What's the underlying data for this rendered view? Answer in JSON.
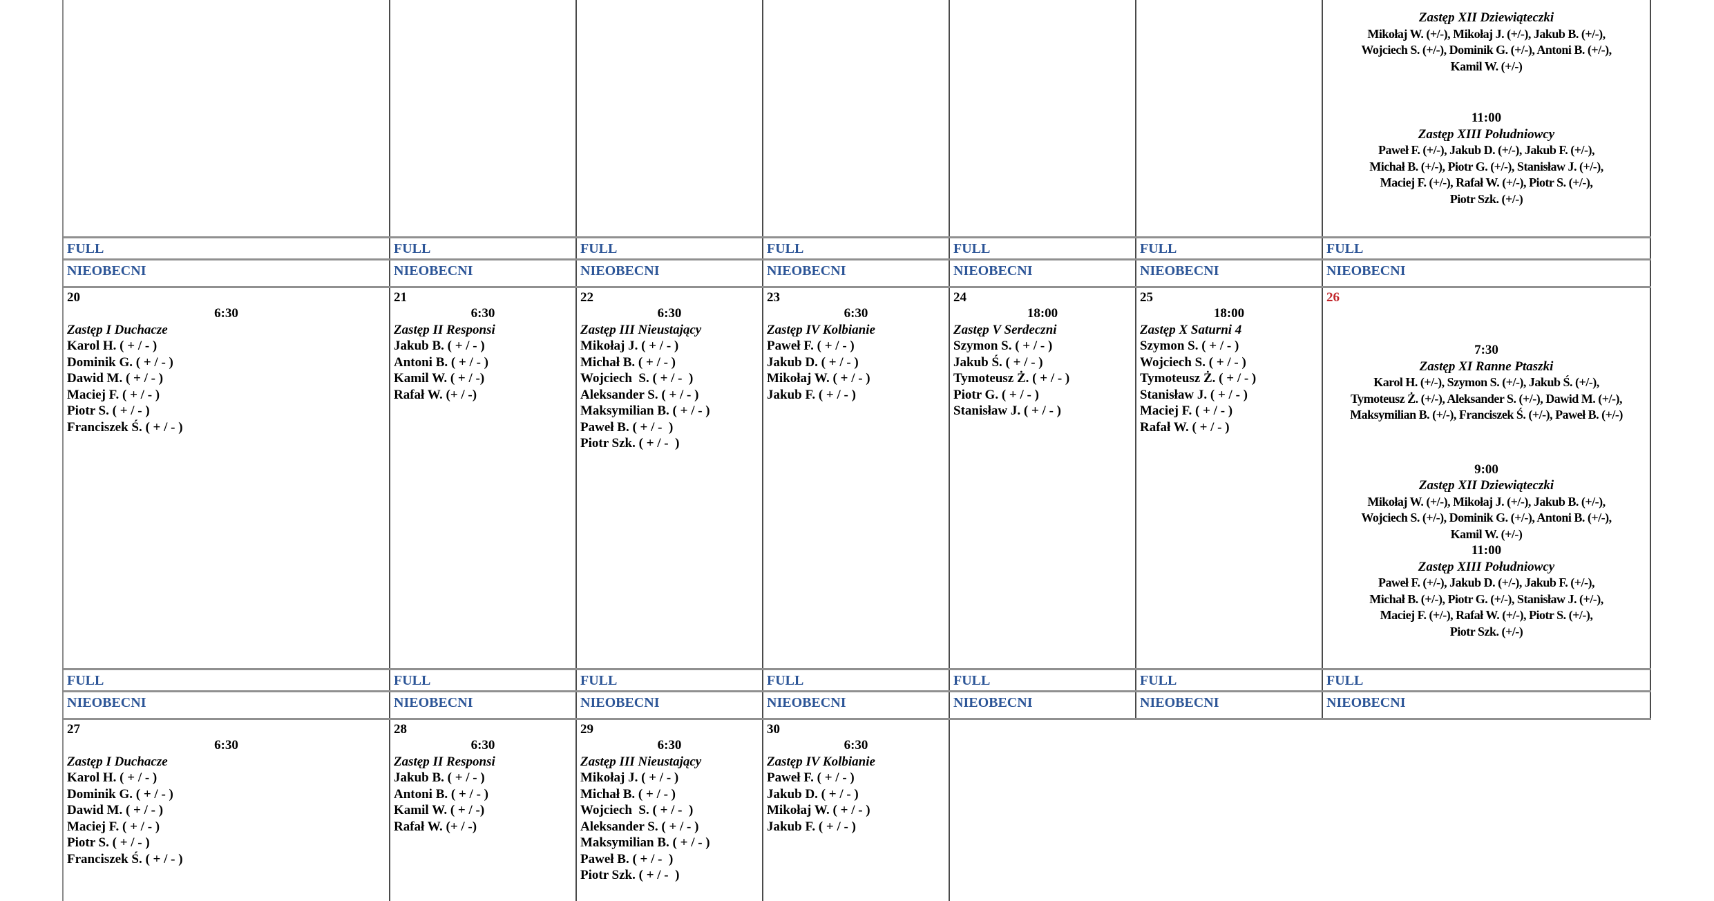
{
  "ui": {
    "labels": {
      "full": "FULL",
      "absent": "NIEOBECNI"
    },
    "colors": {
      "event_blue": "#2C5597",
      "holiday_red": "#C2262B",
      "grid_horizontal": "#909090",
      "grid_vertical": "#4A4A4A"
    }
  },
  "overflow_cell": {
    "blocks": [
      {
        "time": "",
        "title": "Zastęp XII Dziewiąteczki",
        "lines": [
          "Mikołaj W. (+/-), Mikołaj J. (+/-), Jakub B. (+/-),",
          "Wojciech S. (+/-), Dominik G. (+/-), Antoni B. (+/-),",
          "Kamil W. (+/-)"
        ]
      },
      {
        "time": "11:00",
        "title": "Zastęp XIII Południowcy",
        "lines": [
          "Paweł F. (+/-), Jakub D. (+/-), Jakub F. (+/-),",
          "Michał B. (+/-), Piotr G. (+/-), Stanisław J. (+/-),",
          "Maciej F. (+/-), Rafał W. (+/-), Piotr S. (+/-),",
          "Piotr Szk. (+/-)"
        ]
      }
    ]
  },
  "weeks": [
    {
      "days": [
        {
          "date": "20",
          "time": "6:30",
          "group": "Zastęp I Duchacze",
          "members": [
            "Karol H. ( + / - )",
            "Dominik G. ( + / - )",
            "Dawid M. ( + / - )",
            "Maciej F. ( + / - )",
            "Piotr S. ( + / - )",
            "Franciszek Ś. ( + / - )"
          ]
        },
        {
          "date": "21",
          "time": "6:30",
          "group": "Zastęp II Responsi",
          "members": [
            "Jakub B. ( + / - )",
            "Antoni B. ( + / - )",
            "Kamil W. ( + / -)",
            "Rafał W. (+ / -)"
          ]
        },
        {
          "date": "22",
          "time": "6:30",
          "group": "Zastęp III Nieustający",
          "members": [
            "Mikołaj J. ( + / - )",
            "Michał B. ( + / - )",
            "Wojciech  S. ( + / -  )",
            "Aleksander S. ( + / - )",
            "Maksymilian B. ( + / - )",
            "Paweł B. ( + / -  )",
            "Piotr Szk. ( + / -  )"
          ]
        },
        {
          "date": "23",
          "time": "6:30",
          "group": "Zastęp IV Kolbianie",
          "members": [
            "Paweł F. ( + / - )",
            "Jakub D. ( + / - )",
            "Mikołaj W. ( + / - )",
            "Jakub F. ( + / - )"
          ]
        },
        {
          "date": "24",
          "time": "18:00",
          "group": "Zastęp V Serdeczni",
          "members": [
            "Szymon S. ( + / - )",
            "Jakub Ś. ( + / - )",
            "Tymoteusz Ż. ( + / - )",
            "Piotr G. ( + / - )",
            "Stanisław J. ( + / - )"
          ]
        },
        {
          "date": "25",
          "time": "18:00",
          "group": "Zastęp X Saturni 4",
          "members": [
            "Szymon S. ( + / - )",
            "Wojciech S. ( + / - )",
            "Tymoteusz Ż. ( + / - )",
            "Stanisław J. ( + / - )",
            "Maciej F. ( + / - )",
            "Rafał W. ( + / - )"
          ]
        },
        {
          "date": "26",
          "holiday": true,
          "blocks": [
            {
              "time": "7:30",
              "title": "Zastęp XI Ranne Ptaszki",
              "lines": [
                "Karol H. (+/-), Szymon S. (+/-), Jakub Ś. (+/-),",
                "Tymoteusz Ż. (+/-), Aleksander S. (+/-), Dawid M. (+/-),",
                "Maksymilian B. (+/-), Franciszek Ś. (+/-), Paweł B. (+/-)"
              ]
            },
            {
              "time": "9:00",
              "title": "Zastęp XII Dziewiąteczki",
              "lines": [
                "Mikołaj W. (+/-), Mikołaj J. (+/-), Jakub B. (+/-),",
                "Wojciech S. (+/-), Dominik G. (+/-), Antoni B. (+/-),",
                "Kamil W. (+/-)"
              ]
            },
            {
              "time": "11:00",
              "title": "Zastęp XIII Południowcy",
              "lines": [
                "Paweł F. (+/-), Jakub D. (+/-), Jakub F. (+/-),",
                "Michał B. (+/-), Piotr G. (+/-), Stanisław J. (+/-),",
                "Maciej F. (+/-), Rafał W. (+/-), Piotr S. (+/-),",
                "Piotr Szk. (+/-)"
              ]
            }
          ]
        }
      ]
    },
    {
      "days": [
        {
          "date": "27",
          "time": "6:30",
          "group": "Zastęp I Duchacze",
          "members": [
            "Karol H. ( + / - )",
            "Dominik G. ( + / - )",
            "Dawid M. ( + / - )",
            "Maciej F. ( + / - )",
            "Piotr S. ( + / - )",
            "Franciszek Ś. ( + / - )"
          ]
        },
        {
          "date": "28",
          "time": "6:30",
          "group": "Zastęp II Responsi",
          "members": [
            "Jakub B. ( + / - )",
            "Antoni B. ( + / - )",
            "Kamil W. ( + / -)",
            "Rafał W. (+ / -)"
          ]
        },
        {
          "date": "29",
          "time": "6:30",
          "group": "Zastęp III Nieustający",
          "members": [
            "Mikołaj J. ( + / - )",
            "Michał B. ( + / - )",
            "Wojciech  S. ( + / -  )",
            "Aleksander S. ( + / - )",
            "Maksymilian B. ( + / - )",
            "Paweł B. ( + / -  )",
            "Piotr Szk. ( + / -  )"
          ]
        },
        {
          "date": "30",
          "time": "6:30",
          "group": "Zastęp IV Kolbianie",
          "members": [
            "Paweł F. ( + / - )",
            "Jakub D. ( + / - )",
            "Mikołaj W. ( + / - )",
            "Jakub F. ( + / - )"
          ]
        }
      ]
    }
  ]
}
